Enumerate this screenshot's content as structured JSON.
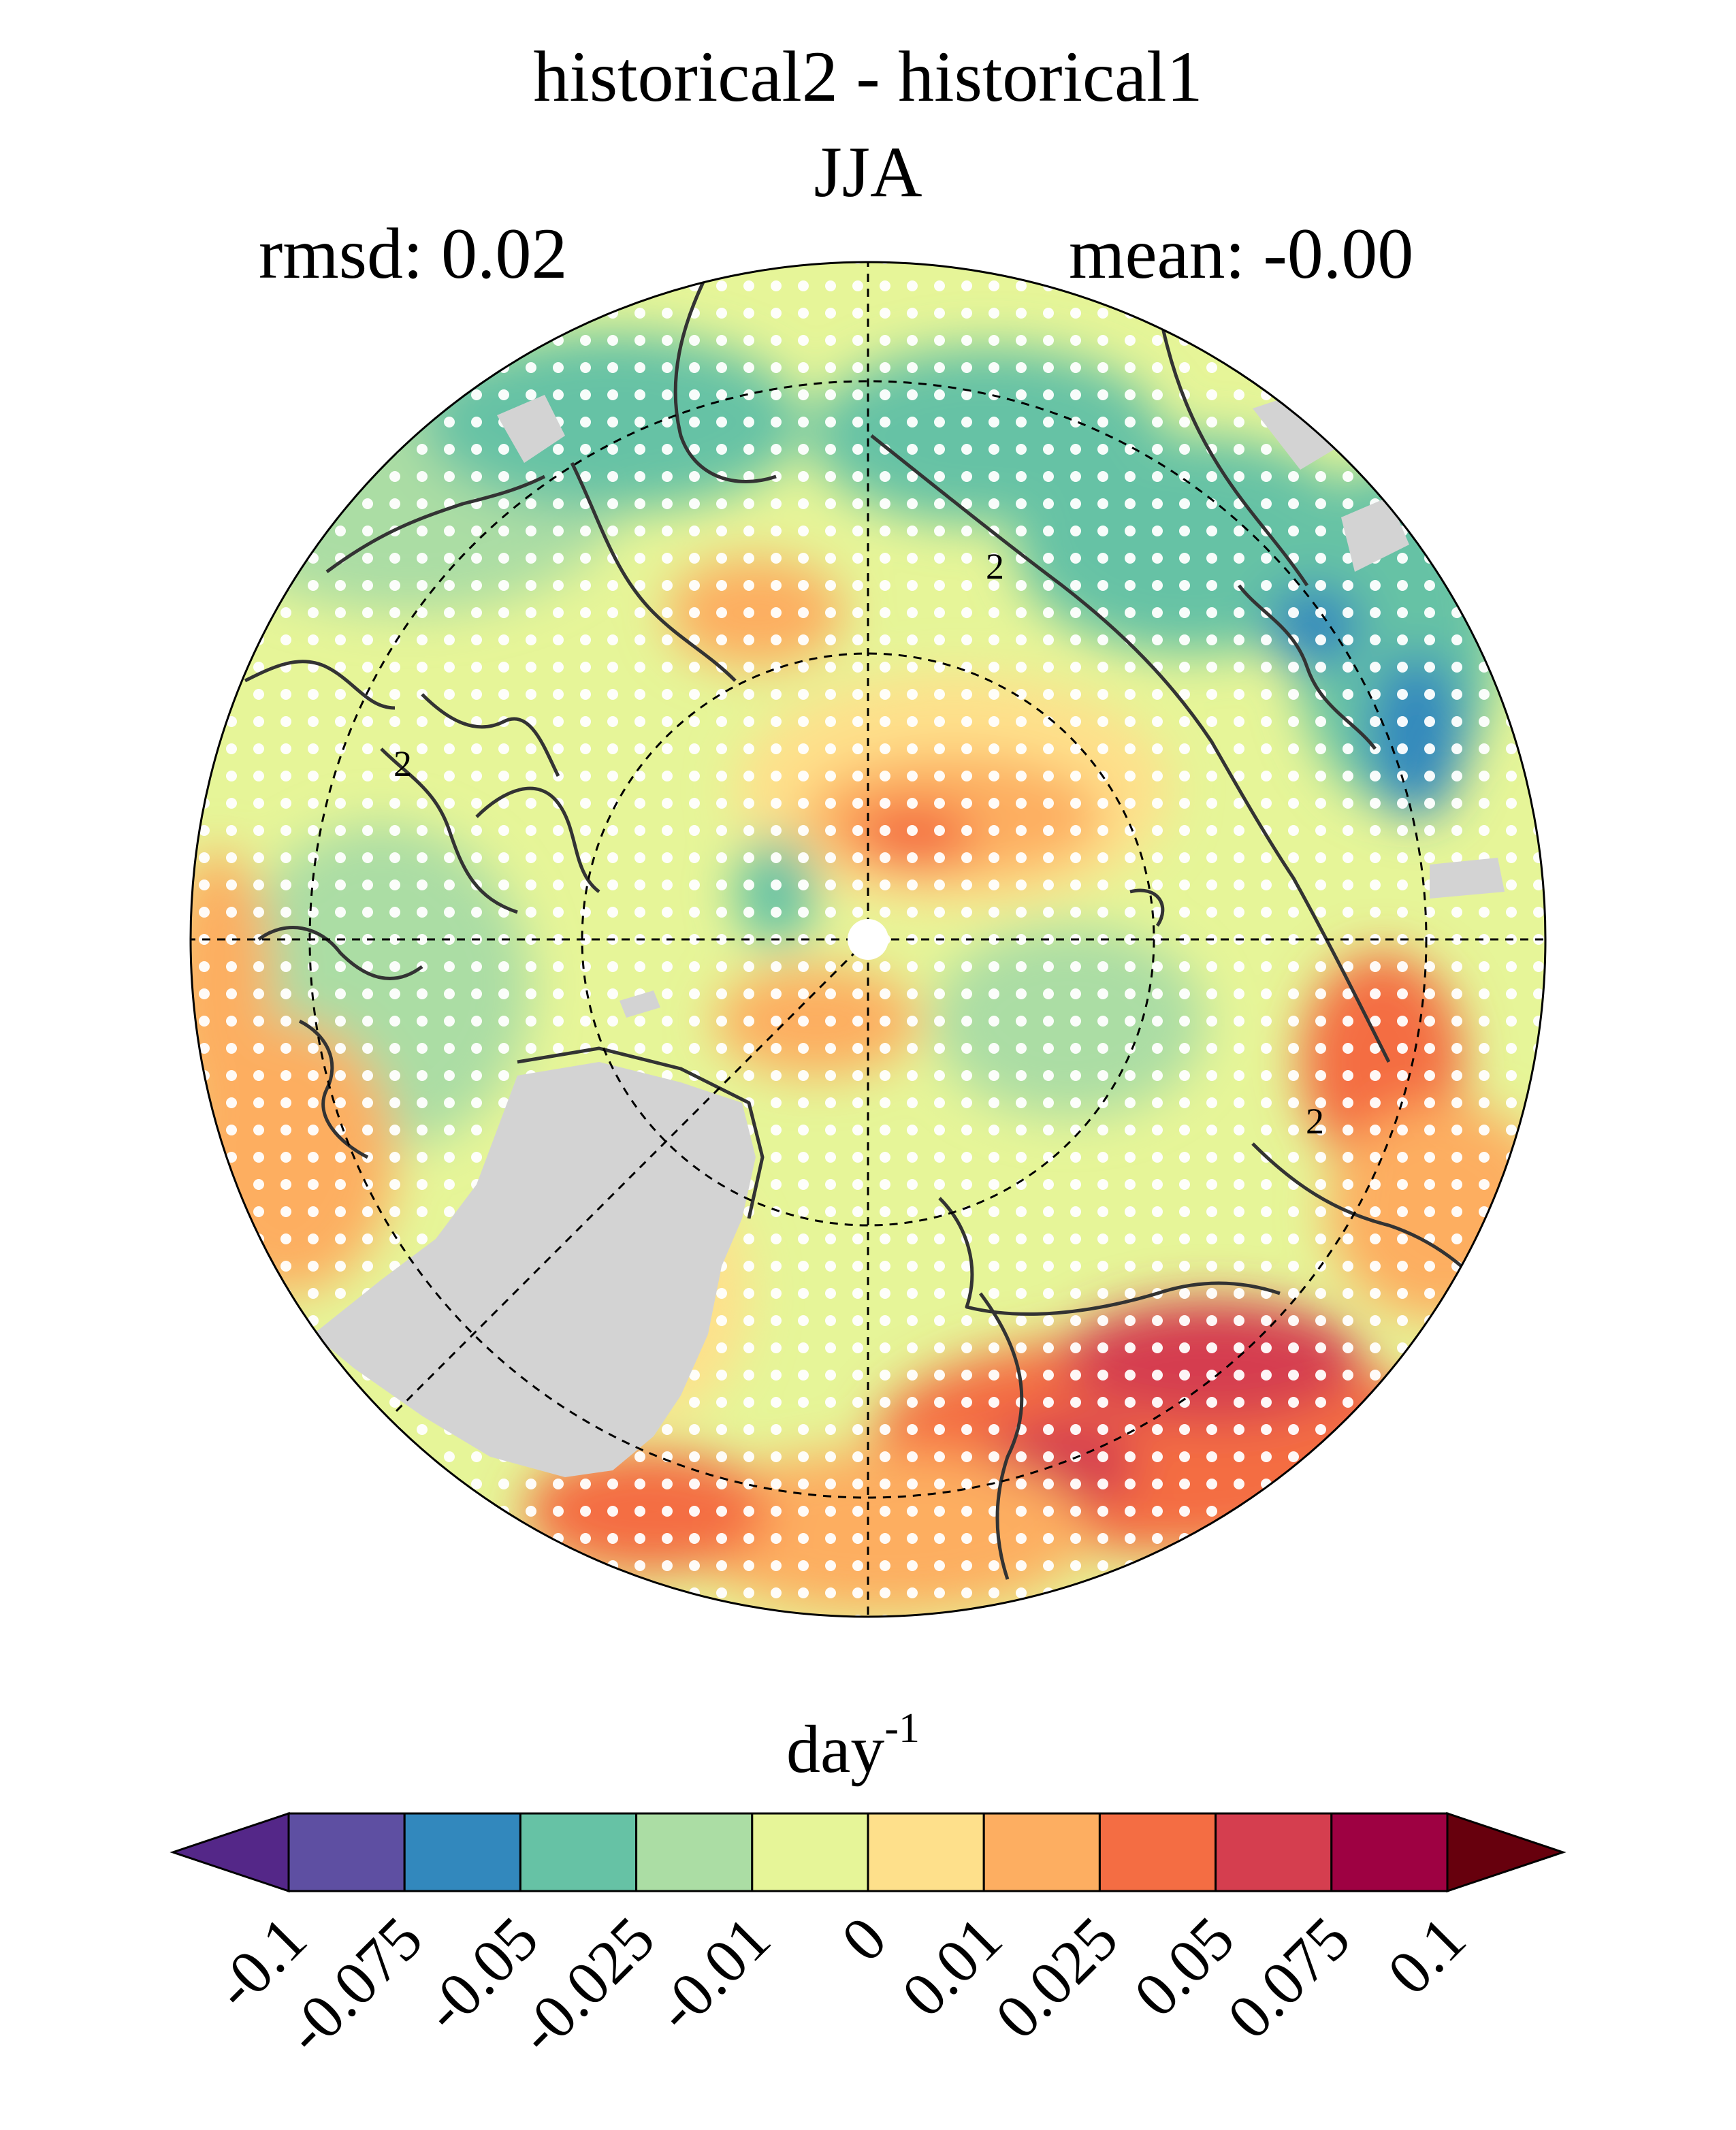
{
  "title": "historical2 - historical1",
  "season": "JJA",
  "rmsd": "rmsd: 0.02",
  "mean": "mean: -0.00",
  "unit_base": "day",
  "unit_exp": "-1",
  "contour_labels": [
    "2",
    "2",
    "2"
  ],
  "colorbar": {
    "ticks": [
      "-0.1",
      "-0.075",
      "-0.05",
      "-0.025",
      "-0.01",
      "0",
      "0.01",
      "0.025",
      "0.05",
      "0.075",
      "0.1"
    ],
    "colors": [
      "#5e4fa2",
      "#3288bd",
      "#66c2a5",
      "#abdda4",
      "#e6f598",
      "#fee08b",
      "#fdae61",
      "#f46d43",
      "#d53e4f",
      "#9e0142"
    ],
    "under_color": "#542788",
    "over_color": "#67000d"
  },
  "colors": {
    "land_mask": "#d3d3d3",
    "coastline": "#333333",
    "stipple": "#ffffff"
  }
}
